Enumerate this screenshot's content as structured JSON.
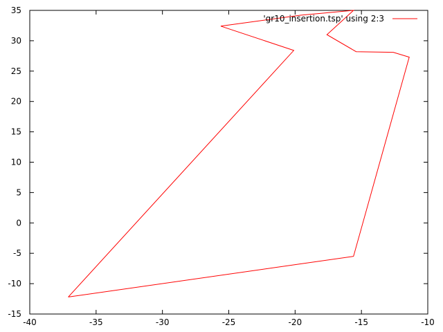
{
  "chart_data": {
    "type": "line",
    "title": "",
    "xlabel": "",
    "ylabel": "",
    "xlim": [
      -40,
      -10
    ],
    "ylim": [
      -15,
      35
    ],
    "xticks": [
      -40,
      -35,
      -30,
      -25,
      -20,
      -15,
      -10
    ],
    "yticks": [
      -15,
      -10,
      -5,
      0,
      5,
      10,
      15,
      20,
      25,
      30,
      35
    ],
    "grid": false,
    "legend_position": "top-right",
    "series": [
      {
        "name": "'gr10_insertion.tsp' using 2:3",
        "color": "#ff0000",
        "x": [
          -37.1,
          -15.6,
          -11.4,
          -12.6,
          -15.4,
          -17.6,
          -15.6,
          -19.6,
          -25.6,
          -20.1,
          -37.1
        ],
        "y": [
          -12.2,
          -5.5,
          27.3,
          28.1,
          28.2,
          31.0,
          35.0,
          34.2,
          32.4,
          28.4,
          -12.2
        ]
      }
    ]
  }
}
